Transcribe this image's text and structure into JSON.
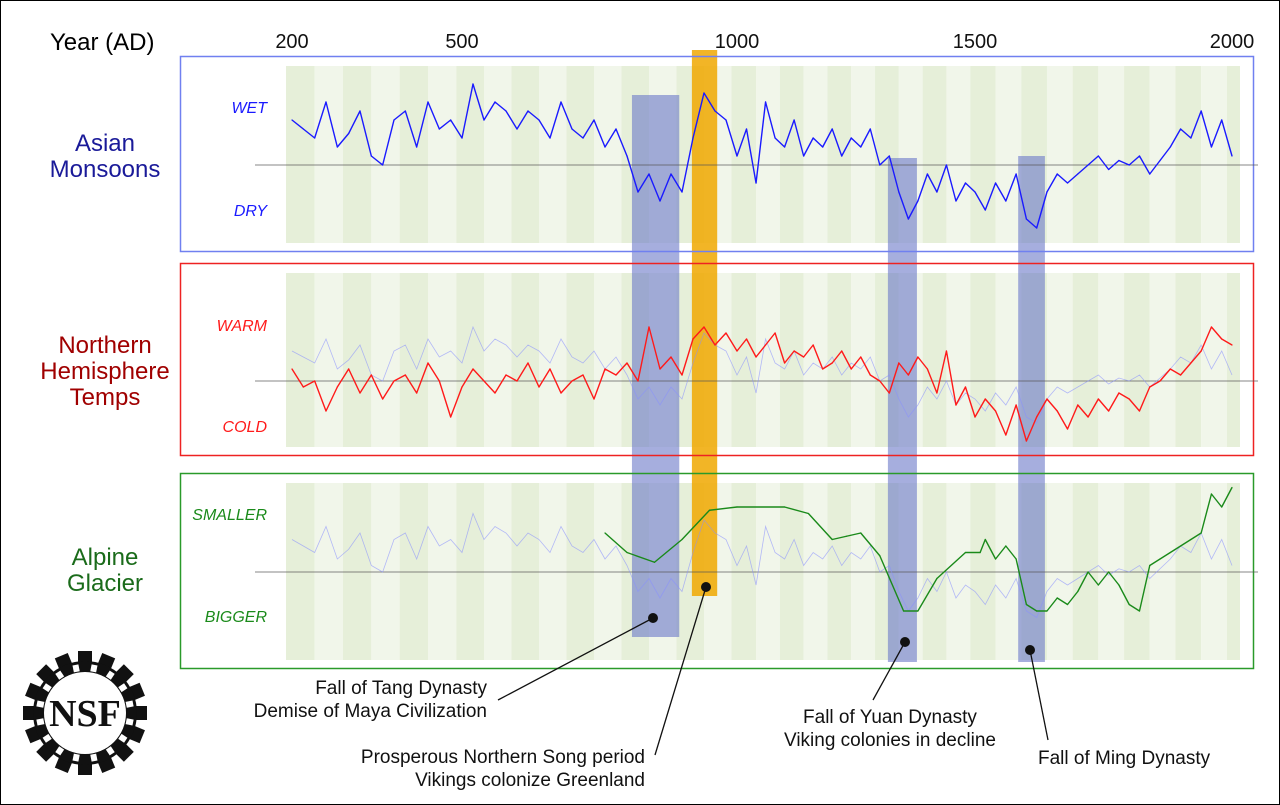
{
  "chart_data": {
    "type": "line",
    "xlabel": "Year (AD)",
    "x_ticks": [
      200,
      500,
      1000,
      1500,
      2000
    ],
    "x_tick_labels": [
      "200",
      "500",
      "1000",
      "1500",
      "2000"
    ],
    "xlim": [
      190,
      2010
    ],
    "panels": [
      {
        "name": "Asian Monsoons",
        "title_lines": [
          "Asian",
          "Monsoons"
        ],
        "top_label": "WET",
        "bottom_label": "DRY",
        "color": "#1a1aff",
        "title_color": "#1a1a99",
        "border_color": "#7080f0",
        "series": {
          "x_start": 200,
          "x_step": 20,
          "values": [
            0.5,
            0.4,
            0.3,
            0.7,
            0.2,
            0.35,
            0.6,
            0.1,
            0.0,
            0.5,
            0.6,
            0.2,
            0.7,
            0.4,
            0.5,
            0.3,
            0.9,
            0.5,
            0.7,
            0.6,
            0.4,
            0.6,
            0.5,
            0.3,
            0.7,
            0.4,
            0.3,
            0.5,
            0.2,
            0.4,
            0.1,
            -0.3,
            -0.1,
            -0.4,
            -0.1,
            -0.3,
            0.3,
            0.8,
            0.6,
            0.5,
            0.1,
            0.4,
            -0.2,
            0.7,
            0.3,
            0.2,
            0.5,
            0.1,
            0.3,
            0.2,
            0.4,
            0.1,
            0.3,
            0.2,
            0.4,
            0.0,
            0.1,
            -0.3,
            -0.6,
            -0.4,
            -0.1,
            -0.3,
            0.0,
            -0.4,
            -0.2,
            -0.3,
            -0.5,
            -0.2,
            -0.4,
            -0.1,
            -0.6,
            -0.7,
            -0.3,
            -0.1,
            -0.2,
            -0.1,
            0.0,
            0.1,
            -0.05,
            0.05,
            0.0,
            0.1,
            -0.1,
            0.05,
            0.2,
            0.4,
            0.3,
            0.6,
            0.2,
            0.5,
            0.1
          ]
        }
      },
      {
        "name": "Northern Hemisphere Temps",
        "title_lines": [
          "Northern",
          "Hemisphere",
          "Temps"
        ],
        "top_label": "WARM",
        "bottom_label": "COLD",
        "color": "#ff1a1a",
        "title_color": "#a00000",
        "border_color": "#ee2222",
        "series": {
          "x_start": 200,
          "x_step": 20,
          "values": [
            0.2,
            -0.1,
            0.0,
            -0.5,
            -0.1,
            0.2,
            -0.2,
            0.1,
            -0.3,
            0.0,
            0.1,
            -0.2,
            0.3,
            0.0,
            -0.6,
            -0.1,
            0.2,
            0.0,
            -0.2,
            0.1,
            0.0,
            0.3,
            -0.1,
            0.2,
            -0.2,
            0.0,
            0.1,
            -0.3,
            0.2,
            0.1,
            0.3,
            0.0,
            0.9,
            0.2,
            0.4,
            0.1,
            0.7,
            0.9,
            0.6,
            0.8,
            0.5,
            0.7,
            0.4,
            0.6,
            0.8,
            0.3,
            0.5,
            0.4,
            0.6,
            0.2,
            0.3,
            0.5,
            0.2,
            0.4,
            0.1,
            0.0,
            -0.2,
            0.3,
            0.1,
            0.4,
            0.2,
            -0.2,
            0.5,
            -0.4,
            -0.1,
            -0.6,
            -0.3,
            -0.5,
            -0.9,
            -0.4,
            -1.0,
            -0.6,
            -0.3,
            -0.5,
            -0.8,
            -0.4,
            -0.6,
            -0.3,
            -0.5,
            -0.2,
            -0.3,
            -0.5,
            -0.1,
            0.0,
            0.2,
            0.1,
            0.3,
            0.5,
            0.9,
            0.7,
            0.6
          ]
        }
      },
      {
        "name": "Alpine Glacier",
        "title_lines": [
          "Alpine",
          "Glacier"
        ],
        "top_label": "SMALLER",
        "bottom_label": "BIGGER",
        "color": "#1a8a1a",
        "title_color": "#1a6b1a",
        "border_color": "#2a9a2a",
        "series": {
          "x": [
            760,
            800,
            850,
            900,
            950,
            1000,
            1100,
            1150,
            1200,
            1230,
            1260,
            1300,
            1350,
            1380,
            1420,
            1480,
            1510,
            1520,
            1540,
            1560,
            1580,
            1600,
            1620,
            1640,
            1660,
            1680,
            1700,
            1720,
            1740,
            1760,
            1780,
            1800,
            1820,
            1840,
            1860,
            1880,
            1900,
            1920,
            1940,
            1960,
            1980,
            2000
          ],
          "values": [
            0.6,
            0.3,
            0.15,
            0.5,
            0.95,
            1.0,
            1.0,
            0.9,
            0.5,
            0.55,
            0.6,
            0.25,
            -0.6,
            -0.6,
            -0.1,
            0.3,
            0.3,
            0.5,
            0.2,
            0.4,
            0.2,
            -0.5,
            -0.6,
            -0.6,
            -0.4,
            -0.5,
            -0.3,
            0.0,
            -0.2,
            0.0,
            -0.2,
            -0.5,
            -0.6,
            0.1,
            0.2,
            0.3,
            0.4,
            0.5,
            0.6,
            1.2,
            1.0,
            1.3
          ]
        }
      }
    ],
    "highlight_bands": [
      {
        "start": 809,
        "end": 895,
        "color": "#6b78c8",
        "kind": "dry"
      },
      {
        "start": 918,
        "end": 964,
        "color": "#f0a800",
        "kind": "warm"
      },
      {
        "start": 1317,
        "end": 1378,
        "color": "#6b78c8",
        "kind": "dry"
      },
      {
        "start": 1584,
        "end": 1636,
        "color": "#6b78c8",
        "kind": "dry"
      }
    ],
    "annotations": [
      {
        "lines": [
          "Fall of Tang Dynasty",
          "Demise of Maya Civilization"
        ],
        "band": 0
      },
      {
        "lines": [
          "Prosperous Northern Song period",
          "Vikings colonize Greenland"
        ],
        "band": 1
      },
      {
        "lines": [
          "Fall of Yuan Dynasty",
          "Viking colonies in decline"
        ],
        "band": 2
      },
      {
        "lines": [
          "Fall of Ming Dynasty"
        ],
        "band": 3
      }
    ]
  },
  "logo": {
    "text": "NSF"
  }
}
